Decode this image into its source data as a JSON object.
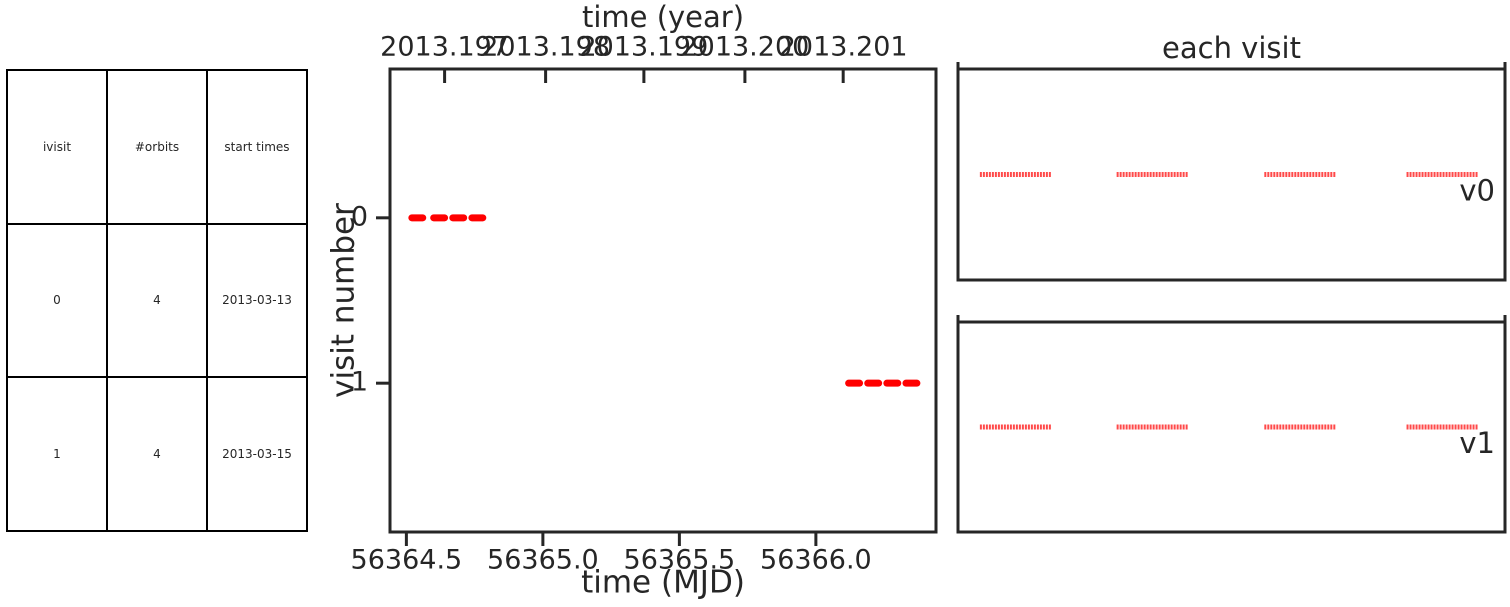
{
  "table": {
    "headers": [
      "ivisit",
      "#orbits",
      "start times"
    ],
    "rows": [
      [
        "0",
        "4",
        "2013-03-13"
      ],
      [
        "1",
        "4",
        "2013-03-15"
      ]
    ]
  },
  "chart_data": [
    {
      "type": "scatter",
      "title": "",
      "xlabel": "time (MJD)",
      "ylabel": "visit number",
      "top_xlabel": "time (year)",
      "xlim": [
        56364.44,
        56366.44
      ],
      "ylim": [
        1.9,
        -0.9
      ],
      "x_ticks": [
        56364.5,
        56365.0,
        56365.5,
        56366.0
      ],
      "x_tick_labels": [
        "56364.5",
        "56365.0",
        "56365.5",
        "56366.0"
      ],
      "y_ticks": [
        0,
        1
      ],
      "y_tick_labels": [
        "0",
        "1"
      ],
      "top_x_ticks": [
        56364.64,
        56365.01,
        56365.37,
        56365.74,
        56366.1
      ],
      "top_x_tick_labels": [
        "2013.197",
        "2013.198",
        "2013.199",
        "2013.200",
        "2013.201"
      ],
      "marker_color": "#ff0000",
      "series": [
        {
          "visit": 0,
          "orbits": [
            [
              56364.52,
              56364.56
            ],
            [
              56364.6,
              56364.64
            ],
            [
              56364.67,
              56364.71
            ],
            [
              56364.74,
              56364.78
            ]
          ]
        },
        {
          "visit": 1,
          "orbits": [
            [
              56366.12,
              56366.16
            ],
            [
              56366.19,
              56366.23
            ],
            [
              56366.26,
              56366.3
            ],
            [
              56366.33,
              56366.37
            ]
          ]
        }
      ]
    },
    {
      "type": "scatter",
      "title": "each visit",
      "marker_color": "#ff2b2b",
      "panels": [
        {
          "label": "v0",
          "orbit_x": [
            [
              0.04,
              0.17
            ],
            [
              0.29,
              0.42
            ],
            [
              0.56,
              0.69
            ],
            [
              0.82,
              0.95
            ]
          ],
          "y": 0.5
        },
        {
          "label": "v1",
          "orbit_x": [
            [
              0.04,
              0.17
            ],
            [
              0.29,
              0.42
            ],
            [
              0.56,
              0.69
            ],
            [
              0.82,
              0.95
            ]
          ],
          "y": 0.5
        }
      ]
    }
  ]
}
